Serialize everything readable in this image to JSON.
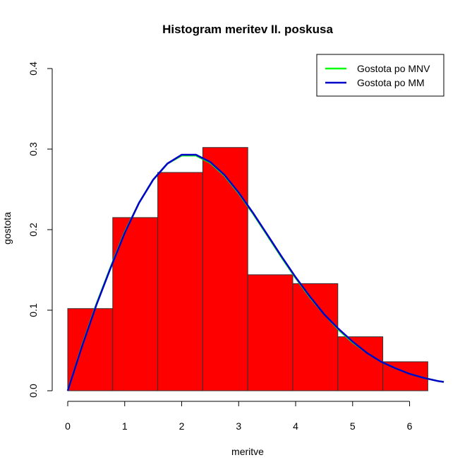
{
  "chart_data": {
    "type": "bar",
    "title": "Histogram meritev II. poskusa",
    "xlabel": "meritve",
    "ylabel": "gostota",
    "xlim": [
      0,
      6.6
    ],
    "ylim": [
      0,
      0.4
    ],
    "x_ticks": [
      "0",
      "1",
      "2",
      "3",
      "4",
      "5",
      "6"
    ],
    "y_ticks": [
      "0.0",
      "0.1",
      "0.2",
      "0.3",
      "0.4"
    ],
    "bar_color": "#ff0000",
    "bins": [
      {
        "x0": 0.0,
        "x1": 0.79,
        "value": 0.102
      },
      {
        "x0": 0.79,
        "x1": 1.58,
        "value": 0.215
      },
      {
        "x0": 1.58,
        "x1": 2.37,
        "value": 0.271
      },
      {
        "x0": 2.37,
        "x1": 3.16,
        "value": 0.302
      },
      {
        "x0": 3.16,
        "x1": 3.95,
        "value": 0.144
      },
      {
        "x0": 3.95,
        "x1": 4.74,
        "value": 0.133
      },
      {
        "x0": 4.74,
        "x1": 5.53,
        "value": 0.067
      },
      {
        "x0": 5.53,
        "x1": 6.32,
        "value": 0.036
      }
    ],
    "series": [
      {
        "name": "Gostota po MNV",
        "color": "#00ff00",
        "type": "line",
        "x": [
          0,
          0.25,
          0.5,
          0.75,
          1,
          1.25,
          1.5,
          1.75,
          2,
          2.25,
          2.5,
          2.75,
          3,
          3.25,
          3.5,
          3.75,
          4,
          4.25,
          4.5,
          4.75,
          5,
          5.25,
          5.5,
          5.75,
          6,
          6.25,
          6.5,
          6.6
        ],
        "values": [
          0,
          0.056,
          0.107,
          0.153,
          0.197,
          0.233,
          0.262,
          0.282,
          0.292,
          0.292,
          0.283,
          0.267,
          0.245,
          0.22,
          0.193,
          0.166,
          0.14,
          0.116,
          0.095,
          0.076,
          0.06,
          0.047,
          0.036,
          0.028,
          0.021,
          0.016,
          0.012,
          0.011
        ]
      },
      {
        "name": "Gostota po MM",
        "color": "#0000cd",
        "type": "line",
        "x": [
          0,
          0.25,
          0.5,
          0.75,
          1,
          1.25,
          1.5,
          1.75,
          2,
          2.25,
          2.5,
          2.75,
          3,
          3.25,
          3.5,
          3.75,
          4,
          4.25,
          4.5,
          4.75,
          5,
          5.25,
          5.5,
          5.75,
          6,
          6.25,
          6.5,
          6.6
        ],
        "values": [
          0,
          0.055,
          0.106,
          0.152,
          0.196,
          0.233,
          0.262,
          0.282,
          0.293,
          0.293,
          0.284,
          0.268,
          0.246,
          0.221,
          0.194,
          0.167,
          0.141,
          0.117,
          0.095,
          0.077,
          0.061,
          0.047,
          0.036,
          0.028,
          0.021,
          0.016,
          0.012,
          0.011
        ]
      }
    ],
    "legend_position": "top-right",
    "grid": false
  }
}
